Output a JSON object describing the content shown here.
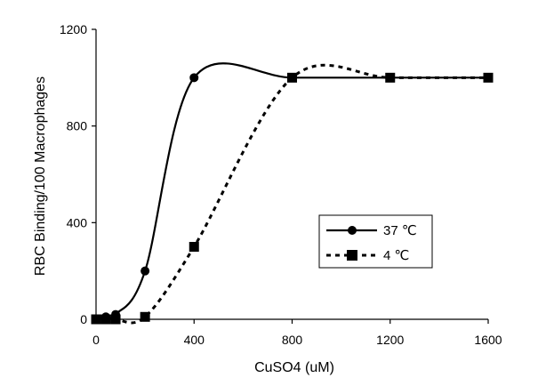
{
  "chart_data": {
    "type": "line",
    "xlabel": "CuSO4 (uM)",
    "ylabel": "RBC Binding/100 Macrophages",
    "xlim": [
      0,
      1600
    ],
    "ylim": [
      0,
      1200
    ],
    "xticks": [
      0,
      400,
      800,
      1200,
      1600
    ],
    "yticks": [
      0,
      400,
      800,
      1200
    ],
    "x_tick_labels": [
      "0",
      "400",
      "800",
      "1200",
      "1600"
    ],
    "y_tick_labels": [
      "0",
      "400",
      "800",
      "1200"
    ],
    "grid": false,
    "legend_position": "right",
    "series": [
      {
        "name": "37 ℃",
        "marker": "circle",
        "line_style": "solid",
        "color": "#000000",
        "points": [
          {
            "x": 0,
            "y": 0
          },
          {
            "x": 40,
            "y": 10
          },
          {
            "x": 80,
            "y": 20
          },
          {
            "x": 200,
            "y": 200
          },
          {
            "x": 400,
            "y": 1000
          },
          {
            "x": 800,
            "y": 1000
          },
          {
            "x": 1200,
            "y": 1000
          },
          {
            "x": 1600,
            "y": 1000
          }
        ]
      },
      {
        "name": "4 ℃",
        "marker": "square",
        "line_style": "dashed",
        "color": "#000000",
        "points": [
          {
            "x": 0,
            "y": 0
          },
          {
            "x": 40,
            "y": 0
          },
          {
            "x": 80,
            "y": 0
          },
          {
            "x": 200,
            "y": 10
          },
          {
            "x": 400,
            "y": 300
          },
          {
            "x": 800,
            "y": 1000
          },
          {
            "x": 1200,
            "y": 1000
          },
          {
            "x": 1600,
            "y": 1000
          }
        ]
      }
    ]
  }
}
